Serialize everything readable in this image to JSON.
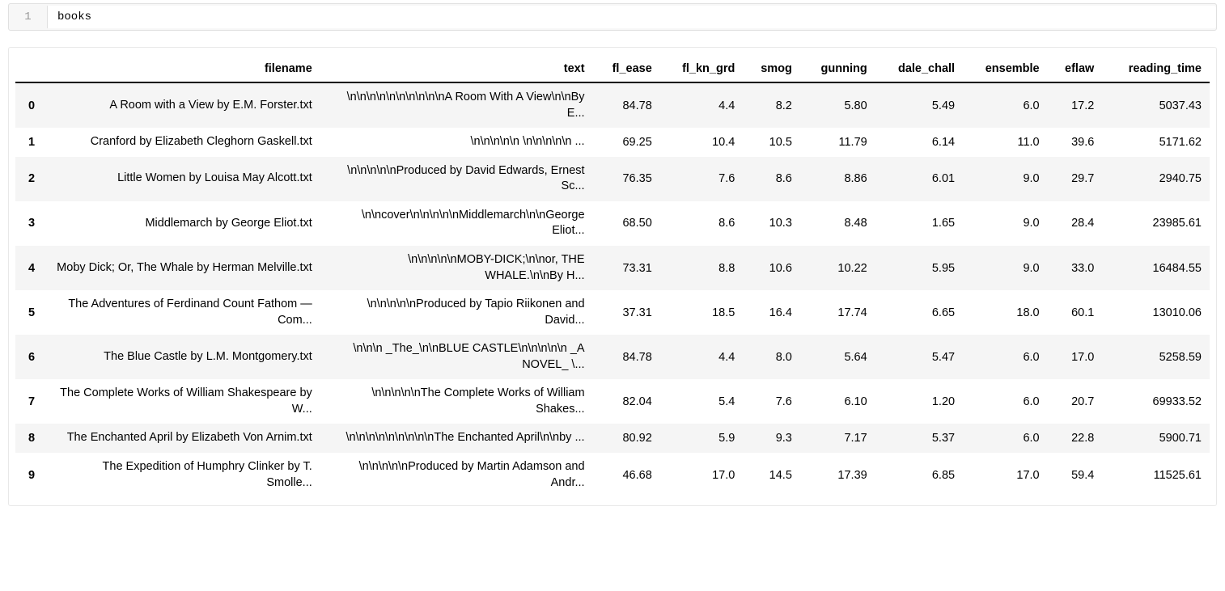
{
  "cell": {
    "line_number": "1",
    "code": "books"
  },
  "table": {
    "columns": [
      "",
      "filename",
      "text",
      "fl_ease",
      "fl_kn_grd",
      "smog",
      "gunning",
      "dale_chall",
      "ensemble",
      "eflaw",
      "reading_time"
    ],
    "rows": [
      {
        "idx": "0",
        "filename": "A Room with a View by E.M. Forster.txt",
        "text": "\\n\\n\\n\\n\\n\\n\\n\\n\\n\\nA Room With A View\\n\\nBy E...",
        "fl_ease": "84.78",
        "fl_kn_grd": "4.4",
        "smog": "8.2",
        "gunning": "5.80",
        "dale_chall": "5.49",
        "ensemble": "6.0",
        "eflaw": "17.2",
        "reading_time": "5037.43"
      },
      {
        "idx": "1",
        "filename": "Cranford by Elizabeth Cleghorn Gaskell.txt",
        "text": "\\n\\n\\n\\n\\n \\n\\n\\n\\n\\n ...",
        "fl_ease": "69.25",
        "fl_kn_grd": "10.4",
        "smog": "10.5",
        "gunning": "11.79",
        "dale_chall": "6.14",
        "ensemble": "11.0",
        "eflaw": "39.6",
        "reading_time": "5171.62"
      },
      {
        "idx": "2",
        "filename": "Little Women by Louisa May Alcott.txt",
        "text": "\\n\\n\\n\\n\\nProduced by David Edwards, Ernest Sc...",
        "fl_ease": "76.35",
        "fl_kn_grd": "7.6",
        "smog": "8.6",
        "gunning": "8.86",
        "dale_chall": "6.01",
        "ensemble": "9.0",
        "eflaw": "29.7",
        "reading_time": "2940.75"
      },
      {
        "idx": "3",
        "filename": "Middlemarch by George Eliot.txt",
        "text": "\\n\\ncover\\n\\n\\n\\n\\nMiddlemarch\\n\\nGeorge Eliot...",
        "fl_ease": "68.50",
        "fl_kn_grd": "8.6",
        "smog": "10.3",
        "gunning": "8.48",
        "dale_chall": "1.65",
        "ensemble": "9.0",
        "eflaw": "28.4",
        "reading_time": "23985.61"
      },
      {
        "idx": "4",
        "filename": "Moby Dick; Or, The Whale by Herman Melville.txt",
        "text": "\\n\\n\\n\\n\\nMOBY-DICK;\\n\\nor, THE WHALE.\\n\\nBy H...",
        "fl_ease": "73.31",
        "fl_kn_grd": "8.8",
        "smog": "10.6",
        "gunning": "10.22",
        "dale_chall": "5.95",
        "ensemble": "9.0",
        "eflaw": "33.0",
        "reading_time": "16484.55"
      },
      {
        "idx": "5",
        "filename": "The Adventures of Ferdinand Count Fathom — Com...",
        "text": "\\n\\n\\n\\n\\nProduced by Tapio Riikonen and David...",
        "fl_ease": "37.31",
        "fl_kn_grd": "18.5",
        "smog": "16.4",
        "gunning": "17.74",
        "dale_chall": "6.65",
        "ensemble": "18.0",
        "eflaw": "60.1",
        "reading_time": "13010.06"
      },
      {
        "idx": "6",
        "filename": "The Blue Castle by L.M. Montgomery.txt",
        "text": "\\n\\n\\n _The_\\n\\nBLUE CASTLE\\n\\n\\n\\n\\n _A NOVEL_ \\...",
        "fl_ease": "84.78",
        "fl_kn_grd": "4.4",
        "smog": "8.0",
        "gunning": "5.64",
        "dale_chall": "5.47",
        "ensemble": "6.0",
        "eflaw": "17.0",
        "reading_time": "5258.59"
      },
      {
        "idx": "7",
        "filename": "The Complete Works of William Shakespeare by W...",
        "text": "\\n\\n\\n\\n\\nThe Complete Works of William Shakes...",
        "fl_ease": "82.04",
        "fl_kn_grd": "5.4",
        "smog": "7.6",
        "gunning": "6.10",
        "dale_chall": "1.20",
        "ensemble": "6.0",
        "eflaw": "20.7",
        "reading_time": "69933.52"
      },
      {
        "idx": "8",
        "filename": "The Enchanted April by Elizabeth Von Arnim.txt",
        "text": "\\n\\n\\n\\n\\n\\n\\n\\n\\nThe Enchanted April\\n\\nby ...",
        "fl_ease": "80.92",
        "fl_kn_grd": "5.9",
        "smog": "9.3",
        "gunning": "7.17",
        "dale_chall": "5.37",
        "ensemble": "6.0",
        "eflaw": "22.8",
        "reading_time": "5900.71"
      },
      {
        "idx": "9",
        "filename": "The Expedition of Humphry Clinker by T. Smolle...",
        "text": "\\n\\n\\n\\n\\nProduced by Martin Adamson and Andr...",
        "fl_ease": "46.68",
        "fl_kn_grd": "17.0",
        "smog": "14.5",
        "gunning": "17.39",
        "dale_chall": "6.85",
        "ensemble": "17.0",
        "eflaw": "59.4",
        "reading_time": "11525.61"
      }
    ]
  },
  "colors": {
    "background": "#ffffff",
    "stripe": "#f5f5f5",
    "border": "#e0e0e0",
    "line_number": "#999999",
    "text": "#000000"
  }
}
